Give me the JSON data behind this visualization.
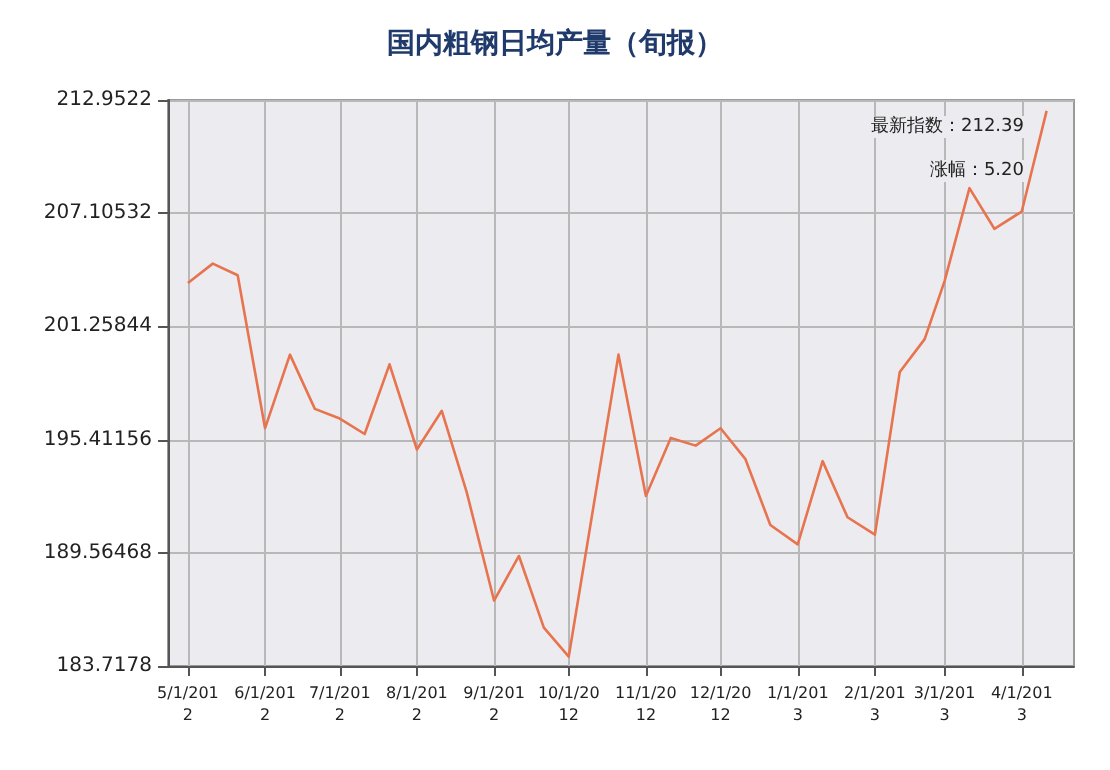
{
  "chart_data": {
    "type": "line",
    "title": "国内粗钢日均产量（旬报）",
    "x": [
      "2012-05-01",
      "2012-05-11",
      "2012-05-21",
      "2012-06-01",
      "2012-06-11",
      "2012-06-21",
      "2012-07-01",
      "2012-07-11",
      "2012-07-21",
      "2012-08-01",
      "2012-08-11",
      "2012-08-21",
      "2012-09-01",
      "2012-09-11",
      "2012-09-21",
      "2012-10-01",
      "2012-10-21",
      "2012-11-01",
      "2012-11-11",
      "2012-11-21",
      "2012-12-01",
      "2012-12-11",
      "2012-12-21",
      "2013-01-01",
      "2013-01-11",
      "2013-01-21",
      "2013-02-01",
      "2013-02-11",
      "2013-02-21",
      "2013-03-01",
      "2013-03-11",
      "2013-03-21",
      "2013-04-01",
      "2013-04-11"
    ],
    "series": [
      {
        "color": "#e8734f",
        "values": [
          203.5,
          204.5,
          203.9,
          196.0,
          199.8,
          197.0,
          196.5,
          195.7,
          199.3,
          194.9,
          196.9,
          192.7,
          187.1,
          189.4,
          185.7,
          184.2,
          199.8,
          192.5,
          195.5,
          195.1,
          196.0,
          194.4,
          191.0,
          190.0,
          194.3,
          191.4,
          190.5,
          198.9,
          200.6,
          203.6,
          208.4,
          206.3,
          207.19,
          212.39
        ]
      }
    ],
    "xlim": [
      "2012-04-23",
      "2013-04-22"
    ],
    "xticks": [
      {
        "value": "2012-05-01",
        "label": "5/1/2012"
      },
      {
        "value": "2012-06-01",
        "label": "6/1/2012"
      },
      {
        "value": "2012-07-01",
        "label": "7/1/2012"
      },
      {
        "value": "2012-08-01",
        "label": "8/1/2012"
      },
      {
        "value": "2012-09-01",
        "label": "9/1/2012"
      },
      {
        "value": "2012-10-01",
        "label": "10/1/2012"
      },
      {
        "value": "2012-11-01",
        "label": "11/1/2012"
      },
      {
        "value": "2012-12-01",
        "label": "12/1/2012"
      },
      {
        "value": "2013-01-01",
        "label": "1/1/2013"
      },
      {
        "value": "2013-02-01",
        "label": "2/1/2013"
      },
      {
        "value": "2013-03-01",
        "label": "3/1/2013"
      },
      {
        "value": "2013-04-01",
        "label": "4/1/2013"
      }
    ],
    "ylim": [
      183.7178,
      212.9522
    ],
    "yticks": [
      183.7178,
      189.56468,
      195.41156,
      201.25844,
      207.10532,
      212.9522
    ],
    "grid": true,
    "marker": "none",
    "line_style": "solid",
    "annotations": [
      "最新指数：212.39",
      "涨幅：5.20"
    ]
  }
}
